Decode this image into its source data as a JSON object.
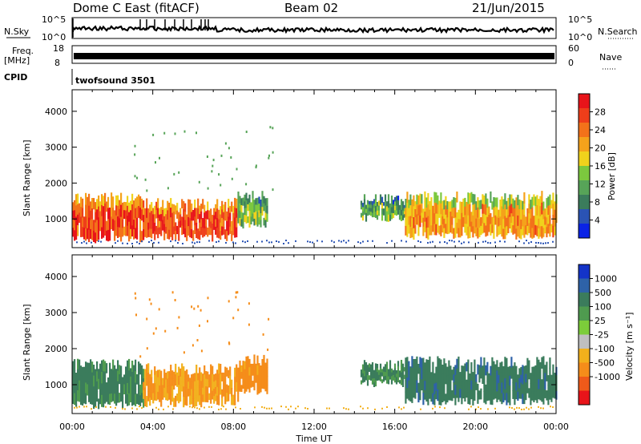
{
  "header": {
    "title": "Dome C East (fitACF)",
    "beam": "Beam 02",
    "date": "21/Jun/2015"
  },
  "top_panels": {
    "nsky_label": "N.Sky",
    "nsearch_label": "N.Search",
    "nsky_ticks": [
      "10^5",
      "10^0"
    ],
    "nsearch_ticks": [
      "10^5",
      "10^0"
    ],
    "freq_label": "Freq.",
    "freq_unit": "[MHz]",
    "freq_ticks": [
      "18",
      "8"
    ],
    "nave_label": "Nave",
    "nave_ticks": [
      "60",
      "0"
    ],
    "cpid_label": "CPID",
    "cpid_value": "twofsound 3501"
  },
  "chart_data": [
    {
      "type": "heatmap",
      "name": "power",
      "ylabel": "Slant Range [km]",
      "ylim": [
        200,
        4600
      ],
      "yticks": [
        "1000",
        "2000",
        "3000",
        "4000"
      ],
      "yticks_values": [
        1000,
        2000,
        3000,
        4000
      ],
      "xlim": [
        0,
        24
      ],
      "colorbar": {
        "label": "Power [dB]",
        "range": [
          0,
          32
        ],
        "ticks": [
          "4",
          "8",
          "12",
          "16",
          "20",
          "24",
          "28"
        ],
        "tick_values": [
          4,
          8,
          12,
          16,
          20,
          24,
          28
        ],
        "colors": [
          "#0a23e6",
          "#2a53b4",
          "#3b7c5c",
          "#57a458",
          "#7cc83e",
          "#f0d21c",
          "#f5a21b",
          "#f3721a",
          "#ee3e1a",
          "#e8141a"
        ]
      },
      "regions": [
        {
          "t0": 0.0,
          "t1": 3.5,
          "r0": 400,
          "r1": 1650,
          "v": 27
        },
        {
          "t0": 3.5,
          "t1": 8.2,
          "r0": 450,
          "r1": 1500,
          "v": 27
        },
        {
          "t0": 8.2,
          "t1": 9.7,
          "r0": 800,
          "r1": 1750,
          "v": 14
        },
        {
          "t0": 14.3,
          "t1": 16.5,
          "r0": 1000,
          "r1": 1600,
          "v": 12
        },
        {
          "t0": 16.5,
          "t1": 24.0,
          "r0": 500,
          "r1": 1700,
          "v": 21
        }
      ]
    },
    {
      "type": "heatmap",
      "name": "velocity",
      "ylabel": "Slant Range [km]",
      "ylim": [
        200,
        4600
      ],
      "yticks": [
        "1000",
        "2000",
        "3000",
        "4000"
      ],
      "yticks_values": [
        1000,
        2000,
        3000,
        4000
      ],
      "xlim": [
        0,
        24
      ],
      "xlabel": "Time UT",
      "xticks": [
        "00:00",
        "04:00",
        "08:00",
        "12:00",
        "16:00",
        "20:00",
        "00:00"
      ],
      "xticks_values": [
        0,
        4,
        8,
        12,
        16,
        20,
        24
      ],
      "colorbar": {
        "label": "Velocity [m s⁻¹]",
        "ticks": [
          "1000",
          "500",
          "100",
          "25",
          "-25",
          "-100",
          "-500",
          "-1000"
        ],
        "colors": [
          "#1434c8",
          "#2e62a8",
          "#3b7c5c",
          "#4f9b4f",
          "#7ccd3a",
          "#bfbfbf",
          "#f2b01c",
          "#f58d1a",
          "#ef5a1a",
          "#e8141a"
        ]
      },
      "regions": [
        {
          "t0": 0.0,
          "t1": 3.5,
          "r0": 400,
          "r1": 1650,
          "v": 150
        },
        {
          "t0": 3.5,
          "t1": 8.2,
          "r0": 450,
          "r1": 1500,
          "v": -120
        },
        {
          "t0": 8.2,
          "t1": 9.7,
          "r0": 800,
          "r1": 1750,
          "v": -200
        },
        {
          "t0": 14.3,
          "t1": 16.5,
          "r0": 1000,
          "r1": 1600,
          "v": 120
        },
        {
          "t0": 16.5,
          "t1": 24.0,
          "r0": 500,
          "r1": 1700,
          "v": 350
        }
      ]
    }
  ]
}
